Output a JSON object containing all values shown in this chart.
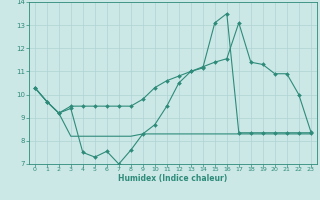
{
  "xlabel": "Humidex (Indice chaleur)",
  "x_values": [
    0,
    1,
    2,
    3,
    4,
    5,
    6,
    7,
    8,
    9,
    10,
    11,
    12,
    13,
    14,
    15,
    16,
    17,
    18,
    19,
    20,
    21,
    22,
    23
  ],
  "line1_y": [
    10.3,
    9.7,
    9.2,
    9.4,
    7.5,
    7.3,
    7.55,
    7.0,
    7.6,
    8.3,
    8.7,
    9.5,
    10.5,
    11.0,
    11.15,
    13.1,
    13.5,
    8.35,
    8.35,
    8.35,
    8.35,
    8.35,
    8.35,
    8.35
  ],
  "line1_x": [
    0,
    1,
    2,
    3,
    4,
    5,
    6,
    7,
    8,
    9,
    10,
    11,
    12,
    13,
    14,
    15,
    16,
    17,
    18,
    19,
    20,
    21,
    22,
    23
  ],
  "line2_y": [
    10.3,
    9.7,
    9.2,
    8.2,
    8.2,
    8.2,
    8.2,
    8.2,
    8.2,
    8.3,
    8.3,
    8.3,
    8.3,
    8.3,
    8.3,
    8.3,
    8.3,
    8.3,
    8.3,
    8.3,
    8.3,
    8.3,
    8.3,
    8.3
  ],
  "line2_x": [
    0,
    1,
    2,
    3,
    4,
    5,
    6,
    7,
    8,
    9,
    10,
    11,
    12,
    13,
    14,
    15,
    16,
    17,
    18,
    19,
    20,
    21,
    22,
    23
  ],
  "line3_y": [
    10.3,
    9.7,
    9.2,
    9.5,
    9.5,
    9.5,
    9.5,
    9.5,
    9.5,
    9.8,
    10.3,
    10.6,
    10.8,
    11.0,
    11.2,
    11.4,
    11.55,
    13.1,
    11.4,
    11.3,
    10.9,
    10.9,
    10.0,
    8.4
  ],
  "line3_x": [
    0,
    1,
    2,
    3,
    4,
    5,
    6,
    7,
    8,
    9,
    10,
    11,
    12,
    13,
    14,
    15,
    16,
    17,
    18,
    19,
    20,
    21,
    22,
    23
  ],
  "line_color": "#2e8b7a",
  "bg_color": "#cce8e6",
  "grid_color": "#afd4d2",
  "ylim": [
    7,
    14
  ],
  "xlim_min": -0.5,
  "xlim_max": 23.5,
  "yticks": [
    7,
    8,
    9,
    10,
    11,
    12,
    13,
    14
  ],
  "xticks": [
    0,
    1,
    2,
    3,
    4,
    5,
    6,
    7,
    8,
    9,
    10,
    11,
    12,
    13,
    14,
    15,
    16,
    17,
    18,
    19,
    20,
    21,
    22,
    23
  ]
}
